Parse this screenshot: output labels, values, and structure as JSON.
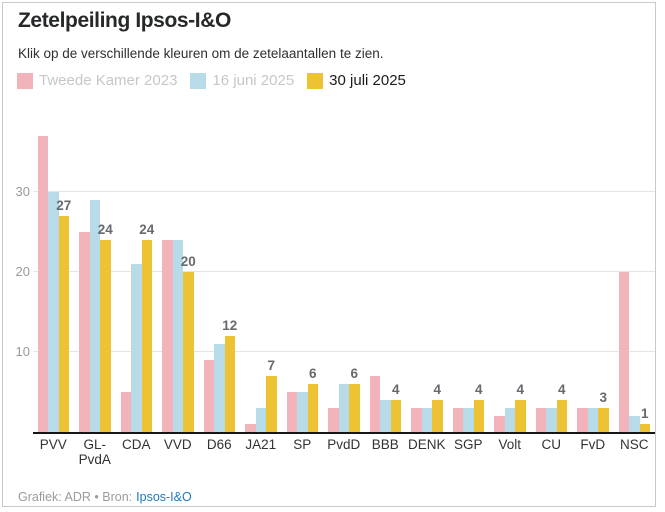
{
  "header": {
    "title": "Zetelpeiling Ipsos-I&O",
    "subtitle": "Klik op de verschillende kleuren om de zetelaantallen te zien."
  },
  "legend": [
    {
      "label": "Tweede Kamer 2023",
      "color": "#F2B4BA",
      "active": false
    },
    {
      "label": "16 juni 2025",
      "color": "#B8DBEA",
      "active": false
    },
    {
      "label": "30 juli 2025",
      "color": "#EDC233",
      "active": true
    }
  ],
  "chart_data": {
    "type": "bar",
    "title": "Zetelpeiling Ipsos-I&O",
    "xlabel": "",
    "ylabel": "",
    "ylim": [
      0,
      38
    ],
    "yticks": [
      10,
      20,
      30
    ],
    "grid": true,
    "legend_position": "top",
    "categories": [
      "PVV",
      "GL-\nPvdA",
      "CDA",
      "VVD",
      "D66",
      "JA21",
      "SP",
      "PvdD",
      "BBB",
      "DENK",
      "SGP",
      "Volt",
      "CU",
      "FvD",
      "NSC"
    ],
    "series": [
      {
        "name": "Tweede Kamer 2023",
        "color": "#F2B4BA",
        "show_value_labels": false,
        "values": [
          37,
          25,
          5,
          24,
          9,
          1,
          5,
          3,
          7,
          3,
          3,
          2,
          3,
          3,
          20
        ]
      },
      {
        "name": "16 juni 2025",
        "color": "#B8DBEA",
        "show_value_labels": false,
        "values": [
          30,
          29,
          21,
          24,
          11,
          3,
          5,
          6,
          4,
          3,
          3,
          3,
          3,
          3,
          2
        ]
      },
      {
        "name": "30 juli 2025",
        "color": "#EDC233",
        "show_value_labels": true,
        "values": [
          27,
          24,
          24,
          20,
          12,
          7,
          6,
          6,
          4,
          4,
          4,
          4,
          4,
          3,
          1
        ]
      }
    ]
  },
  "footer": {
    "credit": "Grafiek: ADR • Bron:",
    "source_link": "Ipsos-I&O"
  },
  "colors": {
    "accent_link": "#1c7ac0",
    "axis": "#161616",
    "gridline": "#e4e4e4",
    "value_label": "#66696e"
  }
}
